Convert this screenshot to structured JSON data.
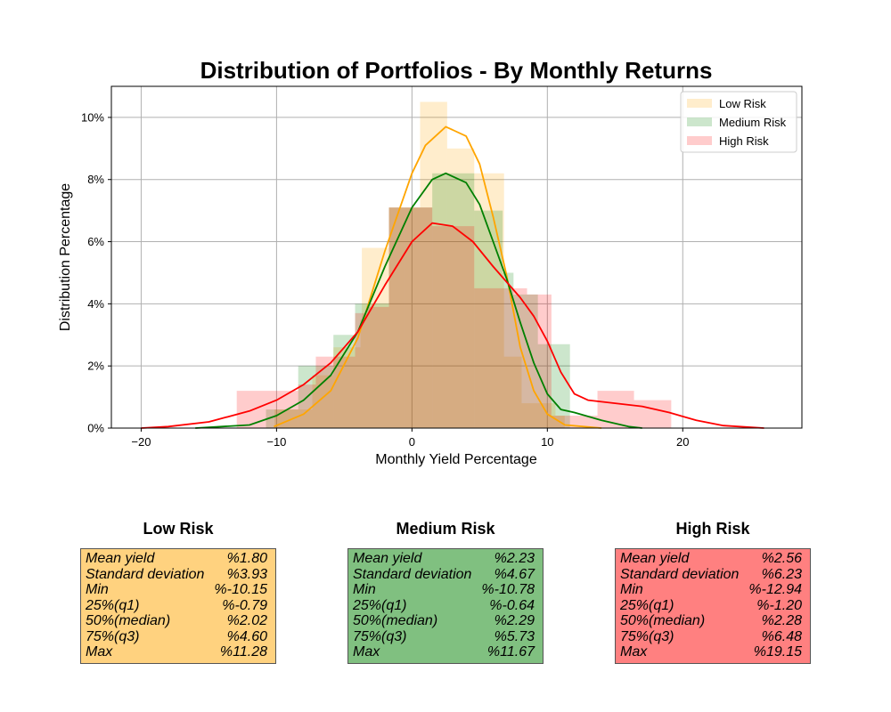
{
  "chart_data": {
    "type": "histogram",
    "title": "Distribution of Portfolios - By Monthly Returns",
    "xlabel": "Monthly Yield Percentage",
    "ylabel": "Distribution Percentage",
    "xlim": [
      -22.2,
      28.8
    ],
    "ylim": [
      0,
      11
    ],
    "xticks": [
      -20,
      -10,
      0,
      10,
      20
    ],
    "yticks": [
      0,
      2,
      4,
      6,
      8,
      10
    ],
    "ytick_labels": [
      "0%",
      "2%",
      "4%",
      "6%",
      "8%",
      "10%"
    ],
    "grid": true,
    "legend_position": "top-right",
    "series": [
      {
        "name": "Low Risk",
        "color": "#FFA500",
        "bins": [
          [
            -10.15,
            -7.36,
            0.6
          ],
          [
            -7.36,
            -5.8,
            1.7
          ],
          [
            -5.8,
            -3.8,
            2.6
          ],
          [
            -3.8,
            -3.7,
            3.5
          ],
          [
            -3.7,
            -1.7,
            5.8
          ],
          [
            -1.7,
            -0.5,
            7.1
          ],
          [
            -0.5,
            0.6,
            7.1
          ],
          [
            0.6,
            2.6,
            10.5
          ],
          [
            2.6,
            4.6,
            9.0
          ],
          [
            4.6,
            6.8,
            8.2
          ],
          [
            6.8,
            8.1,
            2.3
          ],
          [
            8.1,
            10.6,
            0.8
          ],
          [
            10.6,
            11.28,
            0.4
          ]
        ],
        "kde": [
          [
            -10.2,
            0.05
          ],
          [
            -8,
            0.45
          ],
          [
            -6,
            1.2
          ],
          [
            -4,
            2.9
          ],
          [
            -2,
            5.7
          ],
          [
            0,
            8.2
          ],
          [
            1,
            9.1
          ],
          [
            2.5,
            9.7
          ],
          [
            4,
            9.4
          ],
          [
            5,
            8.5
          ],
          [
            6,
            6.8
          ],
          [
            7,
            4.9
          ],
          [
            8,
            2.6
          ],
          [
            9,
            1.2
          ],
          [
            10,
            0.45
          ],
          [
            11.3,
            0.1
          ],
          [
            14,
            0
          ]
        ]
      },
      {
        "name": "Medium Risk",
        "color": "#008000",
        "bins": [
          [
            -10.78,
            -8.4,
            0.6
          ],
          [
            -8.4,
            -5.8,
            2.0
          ],
          [
            -5.8,
            -4.2,
            3.0
          ],
          [
            -4.2,
            -1.7,
            4.0
          ],
          [
            -1.7,
            -0.5,
            7.1
          ],
          [
            -0.5,
            1.5,
            7.1
          ],
          [
            1.5,
            4.6,
            8.2
          ],
          [
            4.6,
            6.7,
            7.0
          ],
          [
            6.7,
            7.5,
            5.0
          ],
          [
            7.5,
            9.3,
            4.3
          ],
          [
            9.3,
            11.67,
            2.7
          ]
        ],
        "kde": [
          [
            -16,
            0
          ],
          [
            -12,
            0.1
          ],
          [
            -10,
            0.4
          ],
          [
            -8,
            0.9
          ],
          [
            -6,
            1.7
          ],
          [
            -4,
            3.1
          ],
          [
            -2,
            5.2
          ],
          [
            0,
            7.1
          ],
          [
            1.5,
            8.0
          ],
          [
            2.5,
            8.2
          ],
          [
            4,
            7.9
          ],
          [
            5,
            7.2
          ],
          [
            6,
            6.0
          ],
          [
            7,
            4.8
          ],
          [
            8,
            3.4
          ],
          [
            9,
            2.1
          ],
          [
            10,
            1.1
          ],
          [
            11,
            0.6
          ],
          [
            12,
            0.5
          ],
          [
            14,
            0.25
          ],
          [
            16,
            0.05
          ],
          [
            17,
            0
          ]
        ]
      },
      {
        "name": "High Risk",
        "color": "#FF0000",
        "bins": [
          [
            -12.94,
            -8.4,
            1.2
          ],
          [
            -8.4,
            -7.1,
            1.4
          ],
          [
            -7.1,
            -4.2,
            2.3
          ],
          [
            -4.2,
            -3.3,
            3.7
          ],
          [
            -3.3,
            -1.7,
            3.9
          ],
          [
            -1.7,
            1.5,
            7.1
          ],
          [
            1.5,
            4.6,
            6.5
          ],
          [
            4.6,
            8.5,
            4.5
          ],
          [
            8.5,
            10.3,
            4.3
          ],
          [
            10.3,
            13.7,
            0.4
          ],
          [
            13.7,
            16.4,
            1.2
          ],
          [
            16.4,
            19.15,
            0.9
          ]
        ],
        "kde": [
          [
            -20,
            0
          ],
          [
            -18,
            0.05
          ],
          [
            -15,
            0.2
          ],
          [
            -12,
            0.55
          ],
          [
            -10,
            0.9
          ],
          [
            -8,
            1.4
          ],
          [
            -6,
            2.1
          ],
          [
            -4,
            3.1
          ],
          [
            -2,
            4.6
          ],
          [
            0,
            6.0
          ],
          [
            1.5,
            6.6
          ],
          [
            3,
            6.5
          ],
          [
            4.5,
            6.0
          ],
          [
            6,
            5.2
          ],
          [
            8,
            4.2
          ],
          [
            9,
            3.6
          ],
          [
            10,
            2.8
          ],
          [
            11,
            1.8
          ],
          [
            12,
            1.1
          ],
          [
            13,
            0.9
          ],
          [
            15,
            0.8
          ],
          [
            17,
            0.7
          ],
          [
            19,
            0.5
          ],
          [
            21,
            0.25
          ],
          [
            23,
            0.08
          ],
          [
            26,
            0
          ]
        ]
      }
    ]
  },
  "stats": [
    {
      "title": "Low Risk",
      "bg": "#FFD27F",
      "rows": [
        {
          "label": "Mean yield",
          "value": "%1.80"
        },
        {
          "label": "Standard deviation",
          "value": "%3.93"
        },
        {
          "label": "Min",
          "value": "%-10.15"
        },
        {
          "label": "25%(q1)",
          "value": "%-0.79"
        },
        {
          "label": "50%(median)",
          "value": "%2.02"
        },
        {
          "label": "75%(q3)",
          "value": "%4.60"
        },
        {
          "label": "Max",
          "value": "%11.28"
        }
      ]
    },
    {
      "title": "Medium Risk",
      "bg": "#80C080",
      "rows": [
        {
          "label": "Mean yield",
          "value": "%2.23"
        },
        {
          "label": "Standard deviation",
          "value": "%4.67"
        },
        {
          "label": "Min",
          "value": "%-10.78"
        },
        {
          "label": "25%(q1)",
          "value": "%-0.64"
        },
        {
          "label": "50%(median)",
          "value": "%2.29"
        },
        {
          "label": "75%(q3)",
          "value": "%5.73"
        },
        {
          "label": "Max",
          "value": "%11.67"
        }
      ]
    },
    {
      "title": "High Risk",
      "bg": "#FF8080",
      "rows": [
        {
          "label": "Mean yield",
          "value": "%2.56"
        },
        {
          "label": "Standard deviation",
          "value": "%6.23"
        },
        {
          "label": "Min",
          "value": "%-12.94"
        },
        {
          "label": "25%(q1)",
          "value": "%-1.20"
        },
        {
          "label": "50%(median)",
          "value": "%2.28"
        },
        {
          "label": "75%(q3)",
          "value": "%6.48"
        },
        {
          "label": "Max",
          "value": "%19.15"
        }
      ]
    }
  ]
}
